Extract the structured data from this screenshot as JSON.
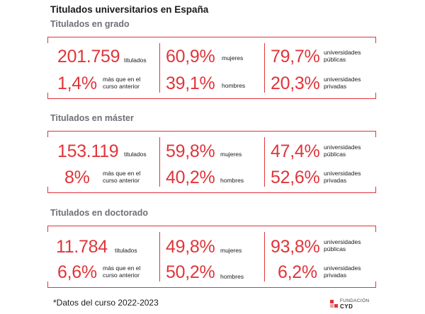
{
  "title": "Titulados universitarios en España",
  "sections": [
    {
      "heading": "Titulados en grado",
      "col1": {
        "big1": "201.759",
        "small1": "titulados",
        "big2": "1,4%",
        "small2": "más que en el\ncurso anterior"
      },
      "col2": {
        "big1": "60,9%",
        "small1": "mujeres",
        "big2": "39,1%",
        "small2": "hombres"
      },
      "col3": {
        "big1": "79,7%",
        "small1": "universidades\npúblicas",
        "big2": "20,3%",
        "small2": "universidades\nprivadas"
      }
    },
    {
      "heading": "Titulados en máster",
      "col1": {
        "big1": "153.119",
        "small1": "titulados",
        "big2": "8%",
        "small2": "más que en el\ncurso anterior"
      },
      "col2": {
        "big1": "59,8%",
        "small1": "mujeres",
        "big2": "40,2%",
        "small2": "hombres"
      },
      "col3": {
        "big1": "47,4%",
        "small1": "universidades\npúblicas",
        "big2": "52,6%",
        "small2": "universidades\nprivadas"
      }
    },
    {
      "heading": "Titulados en doctorado",
      "col1": {
        "big1": "11.784",
        "small1": "titulados",
        "big2": "6,6%",
        "small2": "más que en el\ncurso anterior"
      },
      "col2": {
        "big1": "49,8%",
        "small1": "mujeres",
        "big2": "50,2%",
        "small2": "hombres"
      },
      "col3": {
        "big1": "93,8%",
        "small1": "universidades\npúblicas",
        "big2": "6,2%",
        "small2": "universidades\nprivadas"
      }
    }
  ],
  "footnote": "*Datos del curso 2022-2023",
  "logo": {
    "line1": "FUNDACIÓN",
    "line2": "CYD"
  },
  "colors": {
    "accent": "#e0353a",
    "heading_gray": "#6f6f78",
    "text": "#1a1a1a"
  }
}
